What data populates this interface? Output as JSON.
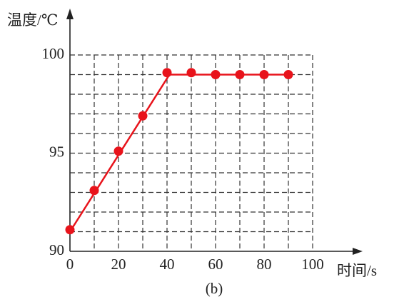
{
  "chart_data": {
    "type": "scatter",
    "y_label": "温度/℃",
    "x_label": "时间/s",
    "caption": "(b)",
    "x": [
      0,
      10,
      20,
      30,
      40,
      50,
      60,
      70,
      80,
      90
    ],
    "series": [
      {
        "color": "#e8131b",
        "values": [
          91.1,
          93.1,
          95.1,
          96.9,
          99.1,
          99.1,
          99.0,
          99.0,
          99.0,
          99.0
        ]
      }
    ],
    "fit_line": {
      "color": "#e8131b",
      "x": [
        0,
        41,
        91
      ],
      "values": [
        91,
        99,
        99
      ]
    },
    "xlim": [
      0,
      100
    ],
    "ylim": [
      90,
      100
    ],
    "xticks": [
      0,
      20,
      40,
      60,
      80,
      100
    ],
    "yticks": [
      90,
      95,
      100
    ],
    "x_grid": [
      10,
      20,
      30,
      40,
      50,
      60,
      70,
      80,
      90,
      100
    ],
    "y_grid": [
      91,
      92,
      93,
      94,
      95,
      96,
      97,
      98,
      99,
      100
    ],
    "grid": true
  }
}
